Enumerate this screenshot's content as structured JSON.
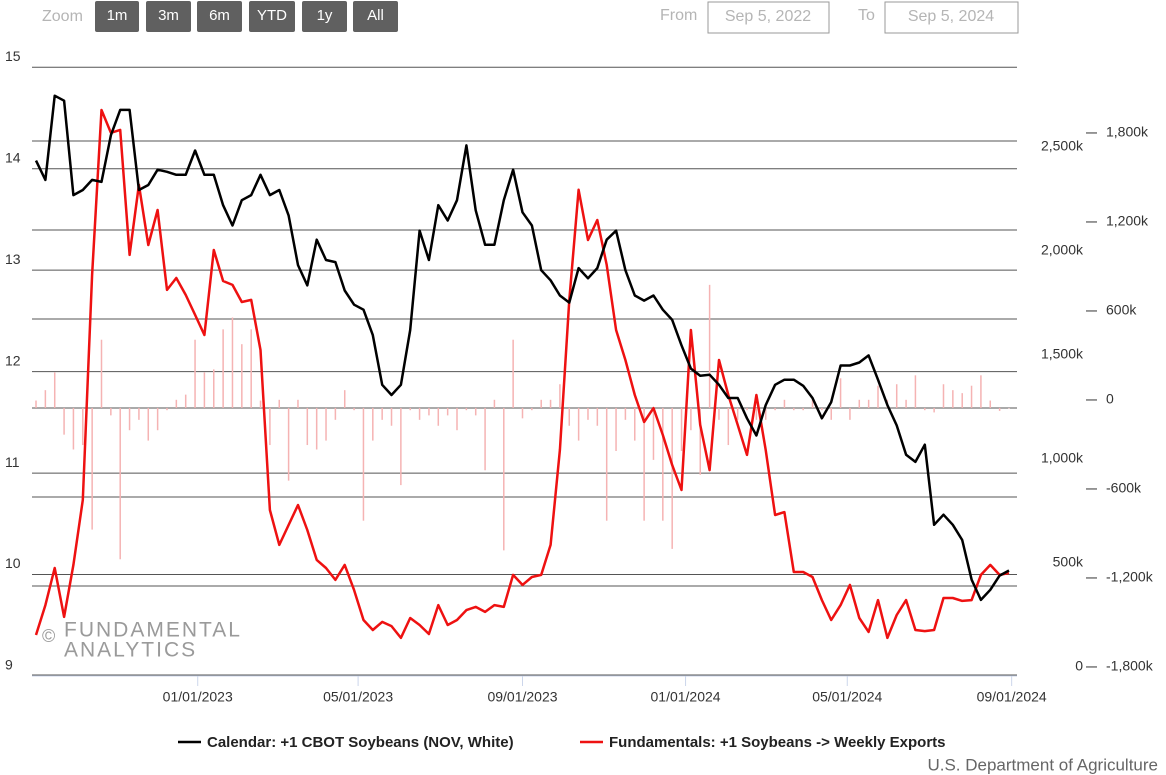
{
  "toolbar": {
    "zoom_label": "Zoom",
    "buttons": [
      "1m",
      "3m",
      "6m",
      "YTD",
      "1y",
      "All"
    ],
    "from_label": "From",
    "from_value": "Sep 5, 2022",
    "to_label": "To",
    "to_value": "Sep 5, 2024"
  },
  "watermark": {
    "symbol": "©",
    "line1": "FUNDAMENTAL",
    "line2": "ANALYTICS"
  },
  "source": "U.S. Department of Agriculture",
  "chart_data": {
    "type": "line",
    "xlim": [
      "08/30/2022",
      "09/05/2024"
    ],
    "xticks": [
      "01/01/2023",
      "05/01/2023",
      "09/01/2023",
      "01/01/2024",
      "05/01/2024",
      "09/01/2024"
    ],
    "ylim": [
      9,
      15.18
    ],
    "yticks": [
      9,
      10,
      11,
      12,
      13,
      14,
      15
    ],
    "y2lim": [
      0,
      3014
    ],
    "y2ticks": [
      0,
      {
        "value": 500,
        "label": "500k"
      },
      {
        "value": 1000,
        "label": "1,000k"
      },
      {
        "value": 1500,
        "label": "1,500k"
      },
      {
        "value": 2000,
        "label": "2,000k"
      },
      {
        "value": 2500,
        "label": "2,500k"
      }
    ],
    "y3lim": [
      -1807,
      2420
    ],
    "y3ticks": [
      {
        "value": -1800,
        "label": "-1,800k"
      },
      {
        "value": -1200,
        "label": "-1,200k"
      },
      {
        "value": -600,
        "label": "-600k"
      },
      0,
      {
        "value": 600,
        "label": "600k"
      },
      {
        "value": 1200,
        "label": "1,200k"
      },
      {
        "value": 1800,
        "label": "1,800k"
      }
    ],
    "grid": true,
    "x": [
      "09/02/2022",
      "09/09/2022",
      "09/16/2022",
      "09/23/2022",
      "09/30/2022",
      "10/07/2022",
      "10/14/2022",
      "10/21/2022",
      "10/28/2022",
      "11/04/2022",
      "11/11/2022",
      "11/18/2022",
      "11/25/2022",
      "12/02/2022",
      "12/09/2022",
      "12/16/2022",
      "12/23/2022",
      "12/30/2022",
      "01/06/2023",
      "01/13/2023",
      "01/20/2023",
      "01/27/2023",
      "02/03/2023",
      "02/10/2023",
      "02/17/2023",
      "02/24/2023",
      "03/03/2023",
      "03/10/2023",
      "03/17/2023",
      "03/24/2023",
      "03/31/2023",
      "04/07/2023",
      "04/14/2023",
      "04/21/2023",
      "04/28/2023",
      "05/05/2023",
      "05/12/2023",
      "05/19/2023",
      "05/26/2023",
      "06/02/2023",
      "06/09/2023",
      "06/16/2023",
      "06/23/2023",
      "06/30/2023",
      "07/07/2023",
      "07/14/2023",
      "07/21/2023",
      "07/28/2023",
      "08/04/2023",
      "08/11/2023",
      "08/18/2023",
      "08/25/2023",
      "09/01/2023",
      "09/08/2023",
      "09/15/2023",
      "09/22/2023",
      "09/29/2023",
      "10/06/2023",
      "10/13/2023",
      "10/20/2023",
      "10/27/2023",
      "11/03/2023",
      "11/10/2023",
      "11/17/2023",
      "11/24/2023",
      "12/01/2023",
      "12/08/2023",
      "12/15/2023",
      "12/22/2023",
      "12/29/2023",
      "01/05/2024",
      "01/12/2024",
      "01/19/2024",
      "01/26/2024",
      "02/02/2024",
      "02/09/2024",
      "02/16/2024",
      "02/23/2024",
      "03/01/2024",
      "03/08/2024",
      "03/15/2024",
      "03/22/2024",
      "03/29/2024",
      "04/05/2024",
      "04/12/2024",
      "04/19/2024",
      "04/26/2024",
      "05/03/2024",
      "05/10/2024",
      "05/17/2024",
      "05/24/2024",
      "05/31/2024",
      "06/07/2024",
      "06/14/2024",
      "06/21/2024",
      "06/28/2024",
      "07/05/2024",
      "07/12/2024",
      "07/19/2024",
      "07/26/2024",
      "08/02/2024",
      "08/09/2024",
      "08/16/2024",
      "08/23/2024",
      "08/30/2024"
    ],
    "series": [
      {
        "name": "Calendar: +1 CBOT Soybeans (NOV, White)",
        "color": "#000000",
        "axis": "y",
        "type": "line",
        "values": [
          14.08,
          13.89,
          14.72,
          14.67,
          13.74,
          13.79,
          13.89,
          13.87,
          14.33,
          14.58,
          14.58,
          13.79,
          13.84,
          13.99,
          13.97,
          13.94,
          13.94,
          14.18,
          13.94,
          13.94,
          13.64,
          13.44,
          13.69,
          13.74,
          13.94,
          13.74,
          13.79,
          13.54,
          13.05,
          12.85,
          13.3,
          13.1,
          13.08,
          12.8,
          12.66,
          12.61,
          12.36,
          11.87,
          11.77,
          11.87,
          12.41,
          13.39,
          13.1,
          13.64,
          13.49,
          13.69,
          14.23,
          13.59,
          13.25,
          13.25,
          13.69,
          13.99,
          13.57,
          13.44,
          13.0,
          12.9,
          12.75,
          12.68,
          13.02,
          12.92,
          13.02,
          13.3,
          13.39,
          13.0,
          12.75,
          12.7,
          12.75,
          12.61,
          12.51,
          12.26,
          12.03,
          11.96,
          11.97,
          11.87,
          11.74,
          11.74,
          11.54,
          11.37,
          11.67,
          11.87,
          11.92,
          11.92,
          11.86,
          11.74,
          11.54,
          11.7,
          12.06,
          12.06,
          12.09,
          12.16,
          11.92,
          11.67,
          11.47,
          11.18,
          11.11,
          11.28,
          10.49,
          10.59,
          10.49,
          10.34,
          9.95,
          9.75,
          9.85,
          9.99,
          10.04
        ]
      },
      {
        "name": "Fundamentals: +1 Soybeans -> Weekly Exports",
        "color": "#ee1111",
        "axis": "y2",
        "type": "line",
        "values": [
          197,
          341,
          519,
          284,
          534,
          846,
          1928,
          2721,
          2611,
          2625,
          2024,
          2361,
          2072,
          2240,
          1856,
          1913,
          1832,
          1736,
          1639,
          2048,
          1899,
          1880,
          1798,
          1808,
          1567,
          798,
          630,
          726,
          822,
          702,
          558,
          519,
          462,
          534,
          413,
          269,
          221,
          260,
          240,
          183,
          279,
          245,
          202,
          341,
          245,
          269,
          317,
          332,
          308,
          341,
          332,
          486,
          438,
          476,
          486,
          630,
          1087,
          1808,
          2337,
          2096,
          2192,
          1976,
          1663,
          1519,
          1351,
          1221,
          1288,
          1159,
          1014,
          894,
          1663,
          1207,
          990,
          1519,
          1351,
          1207,
          1063,
          1351,
          1087,
          774,
          788,
          500,
          500,
          476,
          365,
          269,
          341,
          438,
          279,
          212,
          365,
          183,
          293,
          365,
          221,
          216,
          221,
          375,
          375,
          361,
          365,
          486,
          534,
          486,
          495
        ]
      },
      {
        "color": "#f5b3b3",
        "axis": "y3",
        "type": "bar",
        "values": [
          50,
          120,
          240,
          -180,
          -280,
          -250,
          -820,
          460,
          -50,
          -1020,
          -150,
          -80,
          -220,
          -150,
          -15,
          55,
          90,
          460,
          240,
          260,
          530,
          610,
          430,
          530,
          50,
          -250,
          55,
          -490,
          55,
          -250,
          -280,
          -220,
          -80,
          120,
          -15,
          -760,
          -220,
          -80,
          -120,
          -520,
          -15,
          -80,
          -50,
          -120,
          -50,
          -150,
          -15,
          -50,
          -420,
          55,
          -960,
          460,
          -70,
          -15,
          55,
          55,
          160,
          -120,
          -220,
          -80,
          -120,
          -760,
          -290,
          -80,
          -220,
          -760,
          -350,
          -760,
          -950,
          -290,
          -150,
          -450,
          830,
          -80,
          -250,
          -80,
          -15,
          -80,
          -80,
          -15,
          55,
          -15,
          -15,
          55,
          -15,
          -80,
          200,
          -80,
          55,
          55,
          150,
          55,
          160,
          55,
          220,
          -15,
          -30,
          160,
          120,
          100,
          150,
          220,
          50,
          -20,
          0
        ]
      }
    ]
  }
}
